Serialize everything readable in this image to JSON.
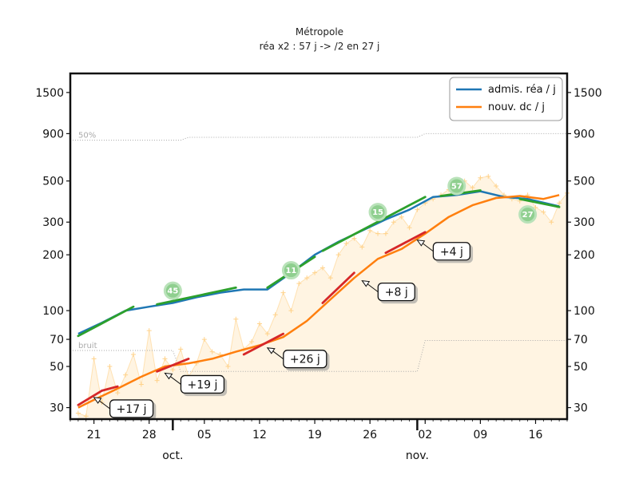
{
  "chart_data": {
    "type": "line",
    "title": "Métropole",
    "subtitle": "réa x2 : 57 j -> /2 en 27 j",
    "y_scale": "log",
    "ylim": [
      26,
      1900
    ],
    "xlim": [
      "2020-09-18",
      "2020-11-20"
    ],
    "yticks": [
      30,
      50,
      70,
      100,
      200,
      300,
      500,
      900,
      1500
    ],
    "ytick_labels": [
      "30",
      "50",
      "70",
      "100",
      "200",
      "300",
      "500",
      "900",
      "1500"
    ],
    "x_ticks": [
      {
        "date": "2020-09-21",
        "label": "21"
      },
      {
        "date": "2020-09-28",
        "label": "28"
      },
      {
        "date": "2020-10-05",
        "label": "05"
      },
      {
        "date": "2020-10-12",
        "label": "12"
      },
      {
        "date": "2020-10-19",
        "label": "19"
      },
      {
        "date": "2020-10-26",
        "label": "26"
      },
      {
        "date": "2020-11-02",
        "label": "02"
      },
      {
        "date": "2020-11-09",
        "label": "09"
      },
      {
        "date": "2020-11-16",
        "label": "16"
      }
    ],
    "month_labels": [
      {
        "date": "2020-10-01",
        "label": "oct."
      },
      {
        "date": "2020-11-01",
        "label": "nov."
      }
    ],
    "legend": {
      "position": "top-right"
    },
    "series": [
      {
        "name": "admis. réa / j",
        "color": "#1f77b4",
        "x": [
          "2020-09-19",
          "2020-09-22",
          "2020-09-25",
          "2020-09-28",
          "2020-10-01",
          "2020-10-04",
          "2020-10-07",
          "2020-10-10",
          "2020-10-13",
          "2020-10-16",
          "2020-10-19",
          "2020-10-22",
          "2020-10-25",
          "2020-10-28",
          "2020-10-31",
          "2020-11-03",
          "2020-11-06",
          "2020-11-09",
          "2020-11-12",
          "2020-11-15",
          "2020-11-19"
        ],
        "values": [
          75,
          86,
          100,
          105,
          110,
          118,
          125,
          130,
          130,
          160,
          200,
          235,
          270,
          310,
          350,
          410,
          420,
          440,
          410,
          400,
          365
        ]
      },
      {
        "name": "nouv. dc / j",
        "color": "#ff7f0e",
        "x": [
          "2020-09-19",
          "2020-09-21",
          "2020-09-24",
          "2020-09-27",
          "2020-09-30",
          "2020-10-03",
          "2020-10-06",
          "2020-10-09",
          "2020-10-12",
          "2020-10-15",
          "2020-10-18",
          "2020-10-21",
          "2020-10-24",
          "2020-10-27",
          "2020-10-30",
          "2020-11-02",
          "2020-11-05",
          "2020-11-08",
          "2020-11-11",
          "2020-11-14",
          "2020-11-17",
          "2020-11-19"
        ],
        "values": [
          30,
          33,
          38,
          44,
          50,
          52,
          55,
          60,
          65,
          72,
          88,
          115,
          150,
          190,
          215,
          260,
          320,
          370,
          405,
          415,
          400,
          420
        ]
      }
    ],
    "growth_segments": [
      {
        "color": "#2ca02c",
        "x": [
          "2020-09-19",
          "2020-09-26"
        ],
        "y": [
          73,
          105
        ]
      },
      {
        "color": "#2ca02c",
        "x": [
          "2020-09-29",
          "2020-10-09"
        ],
        "y": [
          108,
          133
        ]
      },
      {
        "color": "#2ca02c",
        "x": [
          "2020-10-13",
          "2020-10-19"
        ],
        "y": [
          133,
          195
        ]
      },
      {
        "color": "#2ca02c",
        "x": [
          "2020-10-20",
          "2020-11-02"
        ],
        "y": [
          210,
          410
        ]
      },
      {
        "color": "#2ca02c",
        "x": [
          "2020-11-04",
          "2020-11-09"
        ],
        "y": [
          415,
          445
        ]
      },
      {
        "color": "#2ca02c",
        "x": [
          "2020-11-14",
          "2020-11-19"
        ],
        "y": [
          400,
          362
        ]
      },
      {
        "color": "#d62728",
        "x": [
          "2020-09-19",
          "2020-09-22"
        ],
        "y": [
          31,
          37
        ]
      },
      {
        "color": "#d62728",
        "x": [
          "2020-09-22",
          "2020-09-24"
        ],
        "y": [
          37,
          39
        ]
      },
      {
        "color": "#d62728",
        "x": [
          "2020-09-29",
          "2020-10-03"
        ],
        "y": [
          47,
          55
        ]
      },
      {
        "color": "#d62728",
        "x": [
          "2020-10-10",
          "2020-10-15"
        ],
        "y": [
          58,
          75
        ]
      },
      {
        "color": "#d62728",
        "x": [
          "2020-10-20",
          "2020-10-24"
        ],
        "y": [
          110,
          160
        ]
      },
      {
        "color": "#d62728",
        "x": [
          "2020-10-28",
          "2020-11-02"
        ],
        "y": [
          205,
          265
        ]
      }
    ],
    "annotations": [
      {
        "text": "+17 j",
        "x": "2020-09-21",
        "y": 34
      },
      {
        "text": "+19 j",
        "x": "2020-09-30",
        "y": 46
      },
      {
        "text": "+26 j",
        "x": "2020-10-13",
        "y": 63
      },
      {
        "text": "+8 j",
        "x": "2020-10-25",
        "y": 145
      },
      {
        "text": "+4 j",
        "x": "2020-11-01",
        "y": 240
      }
    ],
    "badges": [
      {
        "text": "45",
        "x": "2020-10-01",
        "y": 128
      },
      {
        "text": "11",
        "x": "2020-10-16",
        "y": 165
      },
      {
        "text": "15",
        "x": "2020-10-27",
        "y": 340
      },
      {
        "text": "57",
        "x": "2020-11-06",
        "y": 470
      },
      {
        "text": "27",
        "x": "2020-11-15",
        "y": 330
      }
    ],
    "reference_lines": [
      {
        "label": "50%",
        "color": "#aaaaaa",
        "x": [
          "2020-09-18",
          "2020-10-02",
          "2020-10-03",
          "2020-11-01",
          "2020-11-02",
          "2020-11-20"
        ],
        "y": [
          830,
          830,
          860,
          860,
          900,
          900
        ]
      },
      {
        "label": "bruit",
        "color": "#aaaaaa",
        "x": [
          "2020-09-18",
          "2020-10-01",
          "2020-10-02",
          "2020-11-01",
          "2020-11-02",
          "2020-11-20"
        ],
        "y": [
          61,
          61,
          47,
          47,
          69,
          69
        ]
      }
    ],
    "daily_raw": {
      "color": "#ffd28a",
      "x_start": "2020-09-19",
      "values": [
        28,
        27,
        55,
        32,
        50,
        36,
        45,
        58,
        40,
        78,
        42,
        55,
        48,
        62,
        44,
        52,
        70,
        60,
        58,
        50,
        90,
        62,
        68,
        85,
        75,
        95,
        125,
        100,
        140,
        150,
        160,
        170,
        150,
        200,
        230,
        245,
        220,
        270,
        260,
        260,
        300,
        320,
        280,
        350,
        380,
        400,
        420,
        450,
        470,
        500,
        460,
        520,
        530,
        470,
        420,
        400,
        390,
        420,
        360,
        340,
        300,
        380,
        430
      ]
    }
  }
}
